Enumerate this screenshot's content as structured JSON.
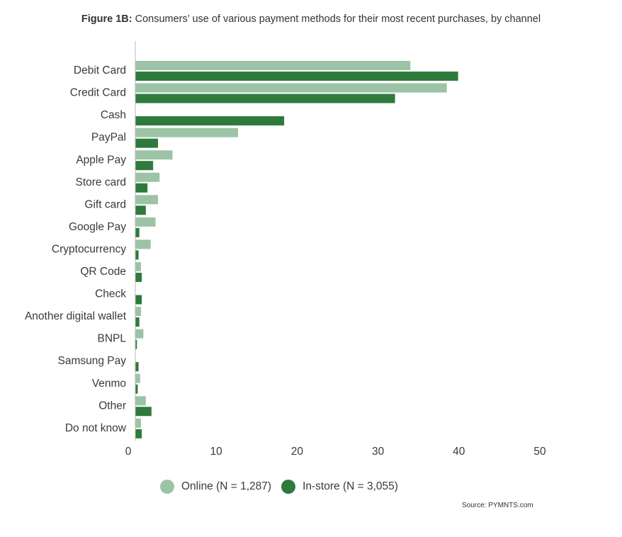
{
  "title": {
    "bold": "Figure 1B:",
    "rest": " Consumers’ use of various payment methods for their most recent purchases, by channel"
  },
  "colors": {
    "online": "#9cc3a6",
    "instore": "#2e7a3c",
    "axis": "#b8b8b8"
  },
  "chart_data": {
    "type": "bar",
    "orientation": "horizontal",
    "categories": [
      "Debit Card",
      "Credit Card",
      "Cash",
      "PayPal",
      "Apple Pay",
      "Store card",
      "Gift card",
      "Google Pay",
      "Cryptocurrency",
      "QR Code",
      "Check",
      "Another digital wallet",
      "BNPL",
      "Samsung Pay",
      "Venmo",
      "Other",
      "Do not know"
    ],
    "series": [
      {
        "name": "Online (N = 1,287)",
        "values": [
          34.0,
          38.5,
          0,
          12.7,
          4.6,
          3.0,
          2.8,
          2.5,
          1.9,
          0.7,
          0,
          0.7,
          1.0,
          0,
          0.6,
          1.3,
          0.7
        ]
      },
      {
        "name": "In-store (N = 3,055)",
        "values": [
          39.9,
          32.1,
          18.4,
          2.8,
          2.2,
          1.5,
          1.3,
          0.5,
          0.4,
          0.8,
          0.8,
          0.5,
          0.2,
          0.4,
          0.3,
          2.0,
          0.8
        ]
      }
    ],
    "xticks": [
      0,
      10,
      20,
      30,
      40,
      50
    ],
    "xlim": [
      0,
      50
    ],
    "legend": "bottom",
    "grid": false
  },
  "source": "Source: PYMNTS.com"
}
